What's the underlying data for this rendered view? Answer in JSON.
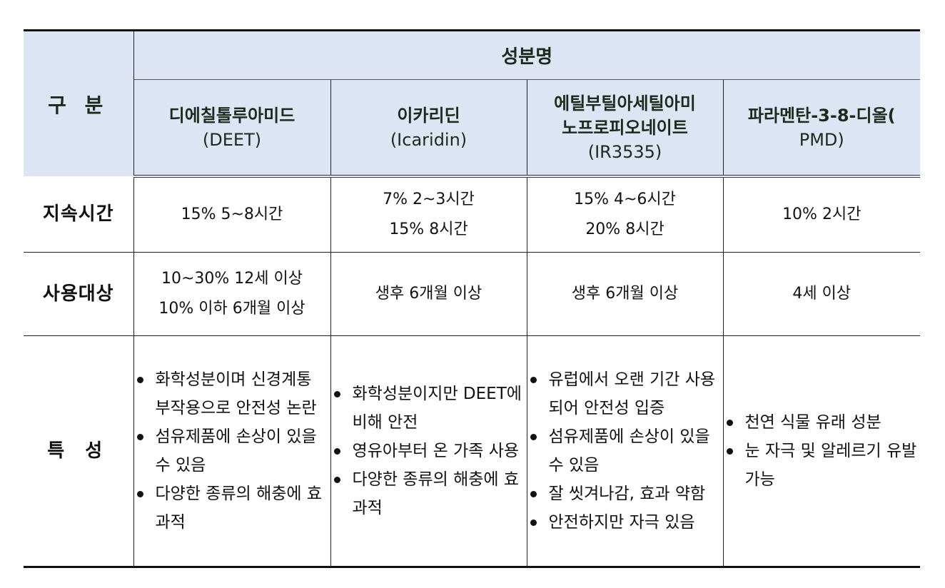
{
  "table": {
    "header": {
      "row_label": "구 분",
      "group_label": "성분명",
      "columns": [
        {
          "name": "디에칠톨루아미드",
          "abbr": "(DEET)"
        },
        {
          "name": "이카리딘",
          "abbr": "(Icaridin)"
        },
        {
          "name_line1": "에틸부틸아세틸아미",
          "name_line2": "노프로피오네이트",
          "abbr": "(IR3535)"
        },
        {
          "name": "파라멘탄-3-8-디올(",
          "abbr": "PMD)"
        }
      ]
    },
    "rows": {
      "duration": {
        "label": "지속시간",
        "cells": [
          {
            "lines": [
              "15%  5~8시간"
            ]
          },
          {
            "lines": [
              "7%  2~3시간",
              "15%  8시간"
            ]
          },
          {
            "lines": [
              "15%  4~6시간",
              "20%  8시간"
            ]
          },
          {
            "lines": [
              "10%  2시간"
            ]
          }
        ]
      },
      "target": {
        "label": "사용대상",
        "cells": [
          {
            "lines": [
              "10~30%  12세  이상",
              "10% 이하 6개월 이상"
            ]
          },
          {
            "lines": [
              "생후  6개월  이상"
            ]
          },
          {
            "lines": [
              "생후  6개월  이상"
            ]
          },
          {
            "lines": [
              "4세  이상"
            ]
          }
        ]
      },
      "features": {
        "label": "특 성",
        "cells": [
          {
            "items": [
              "화학성분이며 신경계통 부작용으로 안전성 논란",
              "섬유제품에 손상이 있을 수 있음",
              "다양한 종류의 해충에 효과적"
            ]
          },
          {
            "items": [
              "화학성분이지만 DEET에 비해 안전",
              "영유아부터 온 가족 사용",
              "다양한 종류의 해충에 효과적"
            ]
          },
          {
            "items": [
              "유럽에서 오랜 기간 사용되어 안전성 입증",
              "섬유제품에 손상이 있을 수 있음",
              "잘 씻겨나감, 효과 약함",
              "안전하지만 자극 있음"
            ]
          },
          {
            "items": [
              "천연 식물 유래 성분",
              "눈 자극 및 알레르기 유발 가능"
            ]
          }
        ]
      }
    },
    "colors": {
      "header_bg": "#dde5f4",
      "border": "#222222",
      "text": "#111111"
    }
  }
}
